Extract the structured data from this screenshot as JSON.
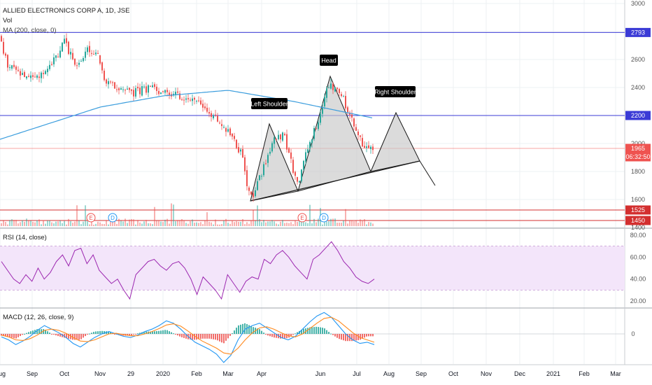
{
  "header": {
    "symbol": "ALLIED ELECTRONICS CORP A, 1D, JSE",
    "vol_label": "Vol",
    "ma_label": "MA (200, close, 0)"
  },
  "rsi_panel": {
    "label": "RSI (14, close)"
  },
  "macd_panel": {
    "label": "MACD (12, 26, close, 9)"
  },
  "colors": {
    "up": "#26a69a",
    "down": "#ef5350",
    "ma": "#3b9ddd",
    "support": "#3b3bd6",
    "red_level": "#d32f2f",
    "rsi": "#9c27b0",
    "rsi_band": "#f3e5fa",
    "pattern_fill": "#c8c8c8",
    "macd_line": "#2196f3",
    "signal_line": "#ff8a1f",
    "text": "#131722"
  },
  "chart_data": [
    {
      "type": "candlestick",
      "title": "ALLIED ELECTRONICS CORP A, 1D, JSE",
      "x_ticks": [
        "Aug",
        "Sep",
        "Oct",
        "Nov",
        "29",
        "2020",
        "Feb",
        "Mar",
        "Apr",
        "Jun",
        "Jul",
        "Aug",
        "Sep",
        "Oct",
        "Nov",
        "Dec",
        "2021",
        "Feb",
        "Mar"
      ],
      "y_ticks": [
        3000,
        2800,
        2600,
        2400,
        2200,
        2000,
        1800,
        1600,
        1400
      ],
      "ylim": [
        1400,
        3000
      ],
      "price_labels": [
        {
          "text": "2793",
          "value": 2793,
          "color": "#3b3bd6"
        },
        {
          "text": "2200",
          "value": 2200,
          "color": "#3b3bd6"
        },
        {
          "text": "1965",
          "value": 1965,
          "color": "#ef5350"
        },
        {
          "text": "06:32:50",
          "value": 1905,
          "color": "#ef5350"
        },
        {
          "text": "1525",
          "value": 1525,
          "color": "#d32f2f"
        },
        {
          "text": "1450",
          "value": 1450,
          "color": "#d32f2f"
        }
      ],
      "horizontal_levels": [
        2793,
        2200,
        1525,
        1450
      ],
      "current_price": 1965,
      "annotations": [
        "Left Shoulder",
        "Head",
        "Right Shoulder"
      ],
      "volume_markers": [
        "E",
        "D",
        "E",
        "D"
      ],
      "price_anchors": [
        {
          "x": "Aug 2019",
          "price": 2760
        },
        {
          "x": "Aug 2019",
          "price": 2560
        },
        {
          "x": "Sep 2019",
          "price": 2450
        },
        {
          "x": "Sep 2019",
          "price": 2600
        },
        {
          "x": "Oct 2019",
          "price": 2720
        },
        {
          "x": "Oct 2019",
          "price": 2560
        },
        {
          "x": "Oct 2019",
          "price": 2680
        },
        {
          "x": "Nov 2019",
          "price": 2600
        },
        {
          "x": "Nov 2019",
          "price": 2430
        },
        {
          "x": "29 Nov 2019",
          "price": 2360
        },
        {
          "x": "Dec 2019",
          "price": 2390
        },
        {
          "x": "Jan 2020",
          "price": 2380
        },
        {
          "x": "Jan 2020",
          "price": 2340
        },
        {
          "x": "Feb 2020",
          "price": 2320
        },
        {
          "x": "Feb 2020",
          "price": 2220
        },
        {
          "x": "Mar 2020",
          "price": 2100
        },
        {
          "x": "Mar 2020",
          "price": 1920
        },
        {
          "x": "Mar 2020",
          "price": 1600
        },
        {
          "x": "Apr 2020",
          "price": 1780
        },
        {
          "x": "Apr 2020",
          "price": 2010
        },
        {
          "x": "Apr 2020",
          "price": 2070
        },
        {
          "x": "May 2020",
          "price": 1880
        },
        {
          "x": "May 2020",
          "price": 1700
        },
        {
          "x": "May 2020",
          "price": 1960
        },
        {
          "x": "Jun 2020",
          "price": 2220
        },
        {
          "x": "Jun 2020",
          "price": 2420
        },
        {
          "x": "Jun 2020",
          "price": 2320
        },
        {
          "x": "Jul 2020",
          "price": 2160
        },
        {
          "x": "Jul 2020",
          "price": 2020
        },
        {
          "x": "Jul 2020",
          "price": 1940
        },
        {
          "x": "Jul 2020",
          "price": 1965
        }
      ],
      "ma200_anchors": [
        {
          "x": "Aug 2019",
          "value": 2030
        },
        {
          "x": "Nov 2019",
          "value": 2260
        },
        {
          "x": "Jan 2020",
          "value": 2340
        },
        {
          "x": "Mar 2020",
          "value": 2380
        },
        {
          "x": "May 2020",
          "value": 2300
        },
        {
          "x": "Jul 2020",
          "value": 2180
        }
      ],
      "neckline": [
        {
          "x": "Mar 2020",
          "price": 1590
        },
        {
          "x": "Sep 2020",
          "price": 1870
        }
      ],
      "projection": [
        {
          "x": "Sep 2020",
          "price": 1870
        },
        {
          "x": "Oct 2020",
          "price": 1700
        }
      ]
    },
    {
      "type": "line",
      "title": "RSI (14, close)",
      "y_ticks": [
        80,
        60,
        40,
        20
      ],
      "ylim": [
        15,
        85
      ],
      "band": [
        30,
        70
      ],
      "series": [
        {
          "name": "RSI (14, close)",
          "values": [
            56,
            48,
            40,
            36,
            44,
            38,
            50,
            40,
            46,
            56,
            62,
            52,
            66,
            68,
            54,
            62,
            48,
            42,
            36,
            40,
            30,
            22,
            44,
            50,
            56,
            58,
            52,
            48,
            54,
            56,
            50,
            40,
            26,
            42,
            36,
            30,
            22,
            44,
            36,
            28,
            38,
            42,
            40,
            58,
            54,
            62,
            66,
            60,
            52,
            46,
            40,
            58,
            62,
            68,
            74,
            66,
            56,
            50,
            42,
            38,
            36,
            40
          ]
        }
      ]
    },
    {
      "type": "line",
      "title": "MACD (12, 26, close, 9)",
      "y_ticks": [
        0
      ],
      "series": [
        {
          "name": "MACD",
          "values": [
            -5,
            -10,
            -18,
            -12,
            -4,
            6,
            14,
            8,
            2,
            -6,
            -16,
            -22,
            -14,
            -6,
            0,
            4,
            0,
            -4,
            -6,
            -2,
            4,
            8,
            14,
            22,
            18,
            8,
            -4,
            -14,
            -20,
            -26,
            -34,
            -48,
            -36,
            -10,
            8,
            14,
            18,
            10,
            2,
            -6,
            -10,
            -4,
            8,
            20,
            30,
            36,
            28,
            14,
            0,
            -10,
            -16,
            -14,
            -18
          ]
        },
        {
          "name": "Signal",
          "values": [
            -2,
            -5,
            -10,
            -11,
            -8,
            -2,
            6,
            8,
            6,
            1,
            -6,
            -12,
            -13,
            -10,
            -5,
            0,
            1,
            -1,
            -3,
            -3,
            0,
            4,
            9,
            15,
            17,
            13,
            5,
            -4,
            -12,
            -18,
            -24,
            -32,
            -34,
            -24,
            -10,
            2,
            10,
            12,
            8,
            2,
            -3,
            -5,
            0,
            9,
            18,
            26,
            28,
            22,
            12,
            2,
            -6,
            -10,
            -14
          ]
        }
      ]
    }
  ]
}
